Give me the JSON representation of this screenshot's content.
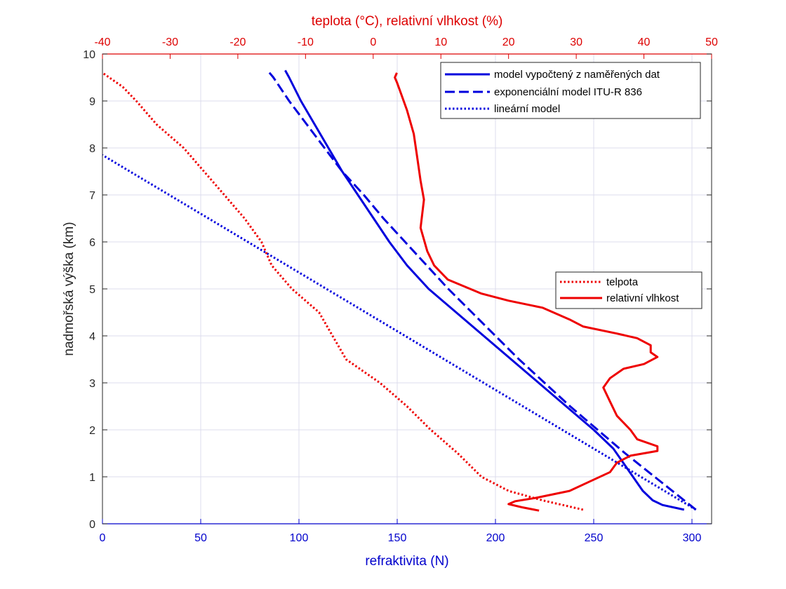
{
  "chart_data": {
    "type": "line",
    "xlabel": "refraktivita (N)",
    "x2label": "teplota (°C), relativní vlhkost (%)",
    "ylabel": "nadmořská výška (km)",
    "xlim": [
      0,
      310
    ],
    "x2lim": [
      -40,
      50
    ],
    "ylim": [
      0,
      10
    ],
    "x_ticks": [
      "0",
      "50",
      "100",
      "150",
      "200",
      "250",
      "300"
    ],
    "x2_ticks": [
      "-40",
      "-30",
      "-20",
      "-10",
      "0",
      "10",
      "20",
      "30",
      "40",
      "50"
    ],
    "y_ticks": [
      "0",
      "1",
      "2",
      "3",
      "4",
      "5",
      "6",
      "7",
      "8",
      "9",
      "10"
    ],
    "grid": true,
    "colors": {
      "primary_axis": "#0000cc",
      "secondary_axis": "#dd0000",
      "grid": "#dcdcec"
    },
    "series": [
      {
        "name": "model vypočtený z naměřených dat",
        "axis": "bottom",
        "color": "#0000dd",
        "style": "solid",
        "y": [
          0.3,
          0.4,
          0.5,
          0.7,
          1.0,
          1.3,
          1.6,
          2.0,
          2.5,
          3.0,
          3.5,
          4.0,
          4.5,
          5.0,
          5.5,
          6.0,
          6.5,
          7.0,
          7.5,
          8.0,
          8.5,
          9.0,
          9.5,
          9.65
        ],
        "x": [
          296,
          285,
          280,
          275,
          270,
          265,
          260,
          250,
          236,
          222,
          208,
          194,
          180,
          166,
          155,
          146,
          138,
          130,
          122,
          115,
          108,
          101,
          95,
          93
        ]
      },
      {
        "name": "exponenciální model ITU-R 836",
        "axis": "bottom",
        "color": "#0000dd",
        "style": "dashed",
        "y": [
          0.3,
          0.5,
          1.0,
          1.5,
          2.0,
          2.5,
          3.0,
          3.5,
          4.0,
          4.5,
          5.0,
          5.5,
          6.0,
          6.5,
          7.0,
          7.5,
          8.0,
          8.5,
          9.0,
          9.5,
          9.65
        ],
        "x": [
          302,
          296,
          281,
          266,
          252,
          238,
          225,
          212,
          200,
          188,
          176,
          165,
          154,
          143,
          133,
          122,
          113,
          104,
          95,
          87,
          84
        ]
      },
      {
        "name": "lineární model",
        "axis": "bottom",
        "color": "#0000dd",
        "style": "dotted",
        "y": [
          0.3,
          7.85
        ],
        "x": [
          302,
          0
        ]
      },
      {
        "name": "telpota",
        "axis": "top",
        "color": "#ee0000",
        "style": "dotted",
        "y": [
          0.3,
          0.4,
          0.5,
          0.7,
          1.0,
          1.5,
          2.0,
          2.5,
          3.0,
          3.5,
          4.0,
          4.5,
          5.0,
          5.5,
          6.0,
          6.5,
          7.0,
          7.5,
          8.0,
          8.5,
          9.0,
          9.3,
          9.6
        ],
        "x": [
          31,
          28,
          25,
          20,
          16,
          12.5,
          8.5,
          5,
          1,
          -4,
          -6,
          -8,
          -12,
          -15,
          -16.5,
          -19,
          -22,
          -25,
          -28,
          -32,
          -35,
          -37,
          -40
        ]
      },
      {
        "name": "relativní vlhkost",
        "axis": "top",
        "color": "#ee0000",
        "style": "solid",
        "y": [
          0.28,
          0.35,
          0.42,
          0.48,
          0.55,
          0.7,
          0.9,
          1.1,
          1.3,
          1.45,
          1.55,
          1.65,
          1.8,
          2.0,
          2.3,
          2.6,
          2.9,
          3.1,
          3.3,
          3.4,
          3.55,
          3.65,
          3.8,
          3.95,
          4.05,
          4.2,
          4.35,
          4.6,
          4.75,
          4.9,
          5.2,
          5.5,
          5.8,
          6.3,
          6.9,
          7.3,
          7.8,
          8.3,
          8.8,
          9.2,
          9.4,
          9.5,
          9.6
        ],
        "x": [
          24.5,
          22,
          20,
          21,
          24,
          29,
          32,
          35,
          36,
          38,
          42,
          42,
          39,
          38,
          36,
          35,
          34,
          35,
          37,
          40,
          42,
          41,
          41,
          39,
          36,
          31,
          29,
          25,
          20,
          16,
          11,
          9,
          8,
          7,
          7.5,
          7,
          6.5,
          6,
          5,
          4,
          3.5,
          3.2,
          3.5
        ]
      }
    ],
    "legends": [
      {
        "position": "top-right",
        "entries": [
          "model vypočtený z naměřených dat",
          "exponenciální model ITU-R 836",
          "lineární model"
        ]
      },
      {
        "position": "right",
        "entries": [
          "telpota",
          "relativní vlhkost"
        ]
      }
    ]
  }
}
